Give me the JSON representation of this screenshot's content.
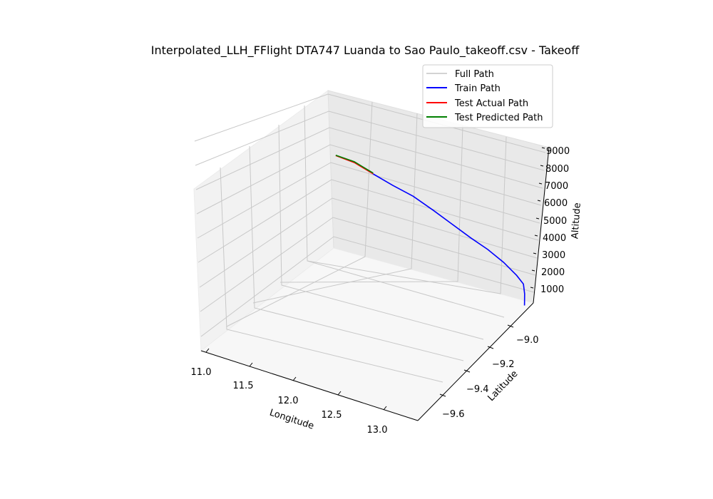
{
  "chart_data": {
    "type": "line3d",
    "title": "Interpolated_LLH_FFlight DTA747 Luanda to Sao Paulo_takeoff.csv - Takeoff",
    "xlabel": "Longitude",
    "ylabel": "Latitude",
    "zlabel": "Altitude",
    "x_ticks": [
      "11.0",
      "11.5",
      "12.0",
      "12.5",
      "13.0"
    ],
    "y_ticks": [
      "−9.0",
      "−9.2",
      "−9.4",
      "−9.6"
    ],
    "z_ticks": [
      "1000",
      "2000",
      "3000",
      "4000",
      "5000",
      "6000",
      "7000",
      "8000",
      "9000"
    ],
    "legend": [
      "Full Path",
      "Train Path",
      "Test Actual Path",
      "Test Predicted Path"
    ],
    "colors": {
      "full": "#d3d3d3",
      "train": "#0000ff",
      "test_actual": "#ff0000",
      "test_predicted": "#008000"
    },
    "series": [
      {
        "name": "Train Path",
        "points": [
          {
            "lon": 13.24,
            "lat": -8.86,
            "alt": 120
          },
          {
            "lon": 13.21,
            "lat": -8.84,
            "alt": 600
          },
          {
            "lon": 13.18,
            "lat": -8.83,
            "alt": 1050
          },
          {
            "lon": 13.1,
            "lat": -8.83,
            "alt": 1450
          },
          {
            "lon": 12.95,
            "lat": -8.83,
            "alt": 2000
          },
          {
            "lon": 12.78,
            "lat": -8.84,
            "alt": 2600
          },
          {
            "lon": 12.6,
            "lat": -8.85,
            "alt": 3100
          },
          {
            "lon": 12.4,
            "lat": -8.86,
            "alt": 3700
          },
          {
            "lon": 12.2,
            "lat": -8.87,
            "alt": 4300
          },
          {
            "lon": 11.98,
            "lat": -8.88,
            "alt": 4900
          },
          {
            "lon": 11.76,
            "lat": -8.89,
            "alt": 5300
          },
          {
            "lon": 11.55,
            "lat": -8.9,
            "alt": 5750
          }
        ]
      },
      {
        "name": "Test Actual Path",
        "points": [
          {
            "lon": 11.55,
            "lat": -8.9,
            "alt": 5750
          },
          {
            "lon": 11.35,
            "lat": -8.91,
            "alt": 6200
          },
          {
            "lon": 11.17,
            "lat": -8.93,
            "alt": 6500
          }
        ]
      },
      {
        "name": "Test Predicted Path",
        "points": [
          {
            "lon": 11.55,
            "lat": -8.9,
            "alt": 5800
          },
          {
            "lon": 11.35,
            "lat": -8.91,
            "alt": 6250
          },
          {
            "lon": 11.17,
            "lat": -8.93,
            "alt": 6520
          }
        ]
      }
    ]
  }
}
